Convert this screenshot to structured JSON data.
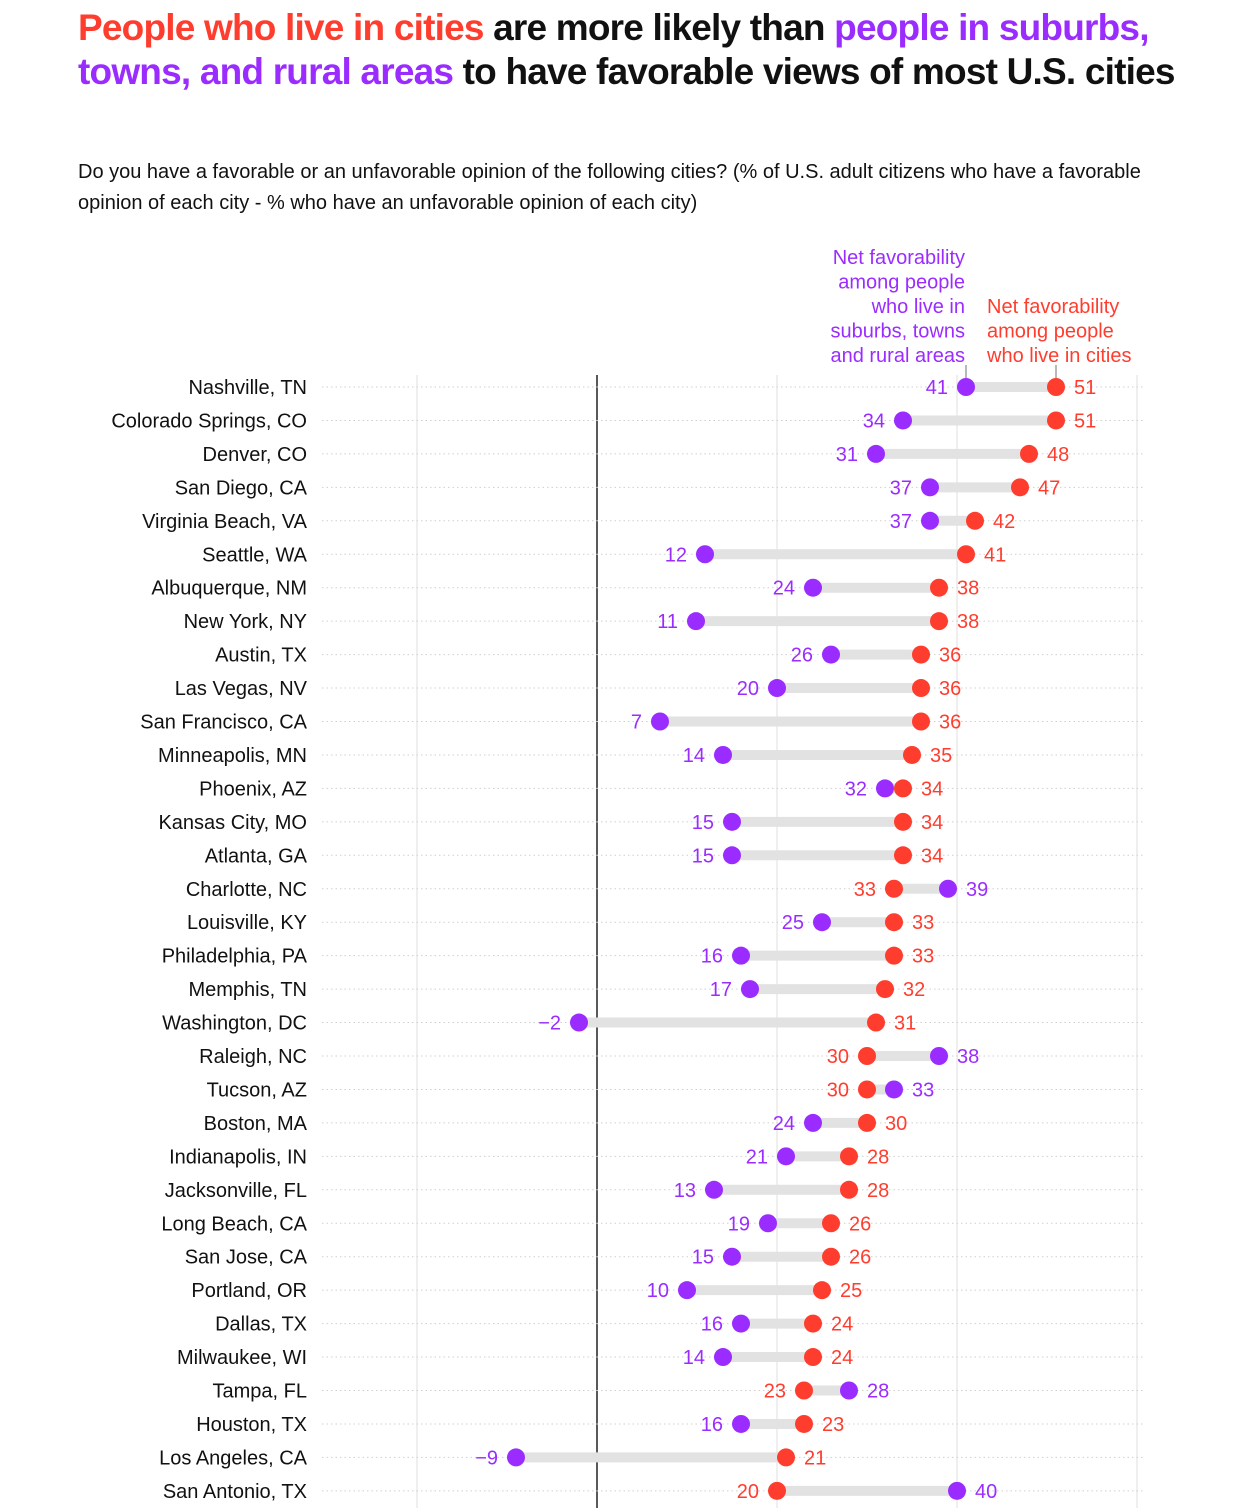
{
  "title": {
    "part1": "People who live in cities",
    "part2": " are more likely than ",
    "part3": "people in suburbs, towns, and rural areas",
    "part4": " to have favorable views of most U.S. cities"
  },
  "subtitle": "Do you have a favorable or an unfavorable opinion of the following cities? (% of U.S. adult citizens who have a favorable opinion of each city - % who have an unfavorable opinion of each city)",
  "colors": {
    "cities": "#ff3d2e",
    "suburbs": "#9b2cff",
    "bar": "#e2e2e2"
  },
  "chart_data": {
    "type": "dot-plot",
    "xlim": [
      -25,
      65
    ],
    "gridlines": [
      -20,
      0,
      20,
      40,
      60
    ],
    "legend": {
      "suburbs": [
        "Net favorability",
        "among people",
        "who live in",
        "suburbs, towns",
        "and rural areas"
      ],
      "cities": [
        "Net favorability",
        "among people",
        "who live in cities"
      ]
    },
    "series": [
      {
        "name": "Net favorability among people who live in cities",
        "key": "cities"
      },
      {
        "name": "Net favorability among people who live in suburbs, towns and rural areas",
        "key": "suburbs"
      }
    ],
    "rows": [
      {
        "city": "Nashville, TN",
        "cities": 51,
        "suburbs": 41
      },
      {
        "city": "Colorado Springs, CO",
        "cities": 51,
        "suburbs": 34
      },
      {
        "city": "Denver, CO",
        "cities": 48,
        "suburbs": 31
      },
      {
        "city": "San Diego, CA",
        "cities": 47,
        "suburbs": 37
      },
      {
        "city": "Virginia Beach, VA",
        "cities": 42,
        "suburbs": 37
      },
      {
        "city": "Seattle, WA",
        "cities": 41,
        "suburbs": 12
      },
      {
        "city": "Albuquerque, NM",
        "cities": 38,
        "suburbs": 24
      },
      {
        "city": "New York, NY",
        "cities": 38,
        "suburbs": 11
      },
      {
        "city": "Austin, TX",
        "cities": 36,
        "suburbs": 26
      },
      {
        "city": "Las Vegas, NV",
        "cities": 36,
        "suburbs": 20
      },
      {
        "city": "San Francisco, CA",
        "cities": 36,
        "suburbs": 7
      },
      {
        "city": "Minneapolis, MN",
        "cities": 35,
        "suburbs": 14
      },
      {
        "city": "Phoenix, AZ",
        "cities": 34,
        "suburbs": 32
      },
      {
        "city": "Kansas City, MO",
        "cities": 34,
        "suburbs": 15
      },
      {
        "city": "Atlanta, GA",
        "cities": 34,
        "suburbs": 15
      },
      {
        "city": "Charlotte, NC",
        "cities": 33,
        "suburbs": 39
      },
      {
        "city": "Louisville, KY",
        "cities": 33,
        "suburbs": 25
      },
      {
        "city": "Philadelphia, PA",
        "cities": 33,
        "suburbs": 16
      },
      {
        "city": "Memphis, TN",
        "cities": 32,
        "suburbs": 17
      },
      {
        "city": "Washington, DC",
        "cities": 31,
        "suburbs": -2
      },
      {
        "city": "Raleigh, NC",
        "cities": 30,
        "suburbs": 38
      },
      {
        "city": "Tucson, AZ",
        "cities": 30,
        "suburbs": 33
      },
      {
        "city": "Boston, MA",
        "cities": 30,
        "suburbs": 24
      },
      {
        "city": "Indianapolis, IN",
        "cities": 28,
        "suburbs": 21
      },
      {
        "city": "Jacksonville, FL",
        "cities": 28,
        "suburbs": 13
      },
      {
        "city": "Long Beach, CA",
        "cities": 26,
        "suburbs": 19
      },
      {
        "city": "San Jose, CA",
        "cities": 26,
        "suburbs": 15
      },
      {
        "city": "Portland, OR",
        "cities": 25,
        "suburbs": 10
      },
      {
        "city": "Dallas, TX",
        "cities": 24,
        "suburbs": 16
      },
      {
        "city": "Milwaukee, WI",
        "cities": 24,
        "suburbs": 14
      },
      {
        "city": "Tampa, FL",
        "cities": 23,
        "suburbs": 28
      },
      {
        "city": "Houston, TX",
        "cities": 23,
        "suburbs": 16
      },
      {
        "city": "Los Angeles, CA",
        "cities": 21,
        "suburbs": -9
      },
      {
        "city": "San Antonio, TX",
        "cities": 20,
        "suburbs": 40
      }
    ]
  }
}
